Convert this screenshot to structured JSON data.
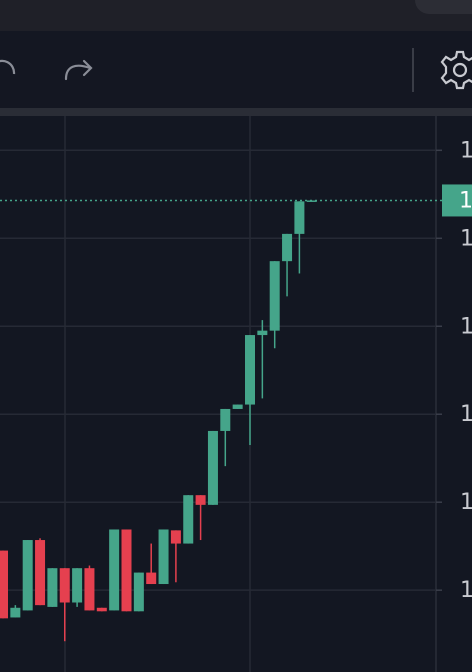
{
  "chart_data": {
    "type": "candlestick",
    "open": [
      104.5,
      96.9,
      97.7,
      105.7,
      98.1,
      102.5,
      98.6,
      102.5,
      98.0,
      97.7,
      106.9,
      97.6,
      102.0,
      100.7,
      106.8,
      105.3,
      110.8,
      109.7,
      118.1,
      120.6,
      121.1,
      129.0,
      129.5,
      137.4,
      140.5,
      144.2
    ],
    "high": [
      104.5,
      98.3,
      105.7,
      105.9,
      102.5,
      102.5,
      102.5,
      102.8,
      98.0,
      106.9,
      106.9,
      102.0,
      105.3,
      106.9,
      106.8,
      110.8,
      110.8,
      118.1,
      120.6,
      121.1,
      129.0,
      130.7,
      137.4,
      140.5,
      144.2,
      144.3
    ],
    "low": [
      96.8,
      96.9,
      97.7,
      98.3,
      98.1,
      94.2,
      98.1,
      97.7,
      97.6,
      97.7,
      97.6,
      97.6,
      100.7,
      100.7,
      100.9,
      105.3,
      105.7,
      109.7,
      114.1,
      120.6,
      116.5,
      121.8,
      127.5,
      133.4,
      136.0,
      144.2
    ],
    "close": [
      96.8,
      98.0,
      105.7,
      98.3,
      102.5,
      98.6,
      102.5,
      97.7,
      97.6,
      106.9,
      97.6,
      102.0,
      100.7,
      106.9,
      105.3,
      110.8,
      109.7,
      118.1,
      120.6,
      121.1,
      129.0,
      129.5,
      137.4,
      140.5,
      144.2,
      144.3
    ],
    "up_color": "#45a58a",
    "down_color": "#e5404f",
    "ylim": [
      90.7,
      153.9
    ],
    "yticks": [
      {
        "value": 150,
        "label": "1"
      },
      {
        "value": 140,
        "label": "1"
      },
      {
        "value": 130,
        "label": "1"
      },
      {
        "value": 120,
        "label": "1"
      },
      {
        "value": 110,
        "label": "1"
      },
      {
        "value": 100,
        "label": "1"
      }
    ],
    "grid": true,
    "current_price": {
      "value": 144.3,
      "label": "1"
    }
  }
}
